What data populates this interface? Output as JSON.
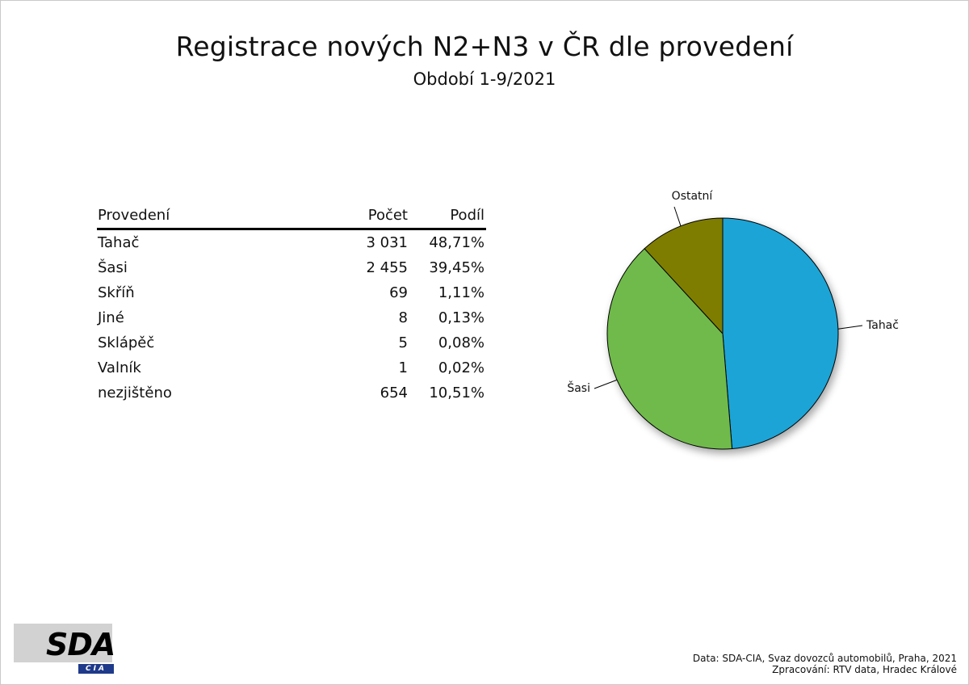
{
  "header": {
    "title": "Registrace nových N2+N3 v ČR dle provedení",
    "subtitle": "Období 1-9/2021"
  },
  "table": {
    "columns": [
      "Provedení",
      "Počet",
      "Podíl"
    ],
    "rows": [
      {
        "name": "Tahač",
        "count": "3 031",
        "share": "48,71%"
      },
      {
        "name": "Šasi",
        "count": "2 455",
        "share": "39,45%"
      },
      {
        "name": "Skříň",
        "count": "69",
        "share": "1,11%"
      },
      {
        "name": "Jiné",
        "count": "8",
        "share": "0,13%"
      },
      {
        "name": "Sklápěč",
        "count": "5",
        "share": "0,08%"
      },
      {
        "name": "Valník",
        "count": "1",
        "share": "0,02%"
      },
      {
        "name": "nezjištěno",
        "count": "654",
        "share": "10,51%"
      }
    ]
  },
  "chart_data": {
    "type": "pie",
    "title": "",
    "slices": [
      {
        "label": "Tahač",
        "value": 48.71,
        "color": "#1ea4d6"
      },
      {
        "label": "Šasi",
        "value": 39.45,
        "color": "#6fba4c"
      },
      {
        "label": "Ostatní",
        "value": 11.84,
        "color": "#7f7d00"
      }
    ]
  },
  "logo": {
    "main": "SDA",
    "sub": "CIA"
  },
  "footer": {
    "source": "Data: SDA-CIA, Svaz dovozců automobilů, Praha, 2021",
    "processing": "Zpracování: RTV data, Hradec Králové"
  }
}
